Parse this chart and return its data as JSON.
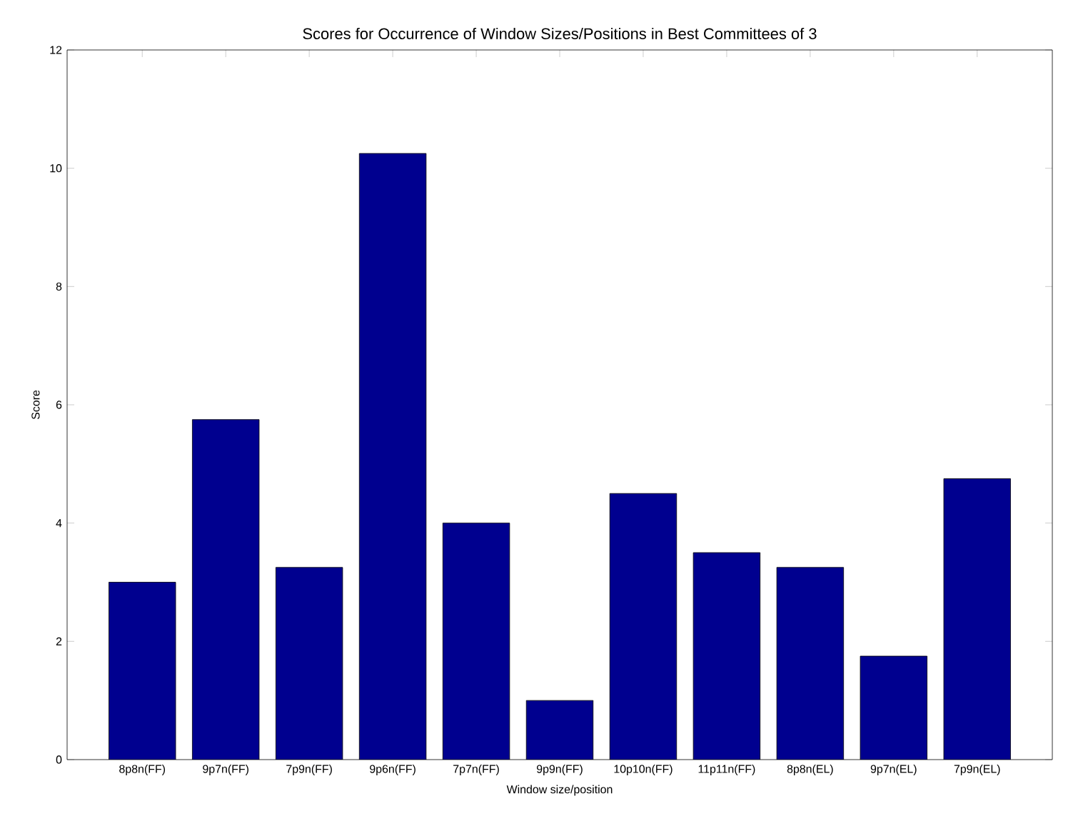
{
  "chart_data": {
    "type": "bar",
    "title": "Scores for Occurrence of Window Sizes/Positions in Best Committees of 3",
    "xlabel": "Window size/position",
    "ylabel": "Score",
    "categories": [
      "8p8n(FF)",
      "9p7n(FF)",
      "7p9n(FF)",
      "9p6n(FF)",
      "7p7n(FF)",
      "9p9n(FF)",
      "10p10n(FF)",
      "11p11n(FF)",
      "8p8n(EL)",
      "9p7n(EL)",
      "7p9n(EL)"
    ],
    "values": [
      3,
      5.75,
      3.25,
      10.25,
      4,
      1,
      4.5,
      3.5,
      3.25,
      1.75,
      4.75
    ],
    "color": "#00008f",
    "ylim": [
      0,
      12
    ],
    "yticks": [
      0,
      2,
      4,
      6,
      8,
      10,
      12
    ],
    "grid": false
  }
}
